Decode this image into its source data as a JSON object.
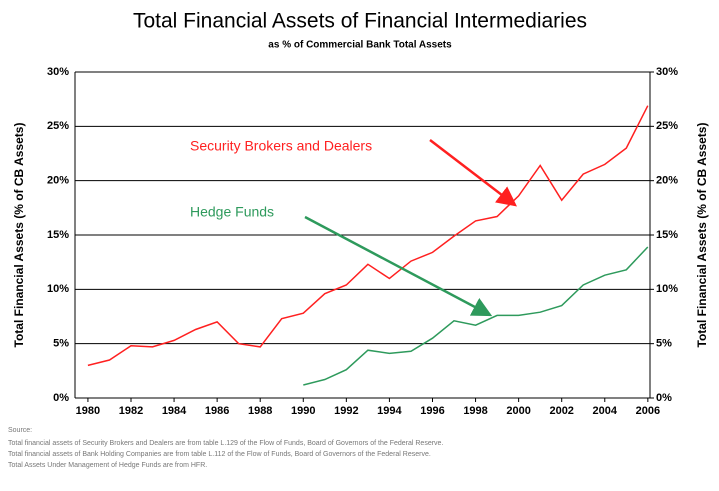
{
  "chart_data": {
    "type": "line",
    "title": "Total Financial Assets of Financial Intermediaries",
    "subtitle": "as % of Commercial Bank Total Assets",
    "y_label": "Total Financial Assets (% of CB Assets)",
    "y2_label": "Total Financial Assets (% of CB Assets)",
    "x": [
      1980,
      1981,
      1982,
      1983,
      1984,
      1985,
      1986,
      1987,
      1988,
      1989,
      1990,
      1991,
      1992,
      1993,
      1994,
      1995,
      1996,
      1997,
      1998,
      1999,
      2000,
      2001,
      2002,
      2003,
      2004,
      2005,
      2006
    ],
    "xlim": [
      1979.4,
      2006.1
    ],
    "xticks": [
      1980,
      1982,
      1984,
      1986,
      1988,
      1990,
      1992,
      1994,
      1996,
      1998,
      2000,
      2002,
      2004,
      2006
    ],
    "ylim": [
      0,
      30
    ],
    "yticks": [
      {
        "value": 0,
        "label": "0%"
      },
      {
        "value": 5,
        "label": "5%"
      },
      {
        "value": 10,
        "label": "10%"
      },
      {
        "value": 15,
        "label": "15%"
      },
      {
        "value": 20,
        "label": "20%"
      },
      {
        "value": 25,
        "label": "25%"
      },
      {
        "value": 30,
        "label": "30%"
      }
    ],
    "y2lim": [
      0,
      30
    ],
    "y2ticks": [
      {
        "value": 0,
        "label": "0%"
      },
      {
        "value": 5,
        "label": "5%"
      },
      {
        "value": 10,
        "label": "10%"
      },
      {
        "value": 15,
        "label": "15%"
      },
      {
        "value": 20,
        "label": "20%"
      },
      {
        "value": 25,
        "label": "25%"
      },
      {
        "value": 30,
        "label": "30%"
      }
    ],
    "grid": true,
    "series": [
      {
        "name": "Security Brokers and Dealers",
        "color": "#ff2020",
        "values": [
          3.0,
          3.5,
          4.8,
          4.7,
          5.3,
          6.3,
          7.0,
          5.0,
          4.7,
          7.3,
          7.8,
          9.6,
          10.4,
          12.3,
          11.0,
          12.6,
          13.4,
          14.9,
          16.3,
          16.7,
          18.6,
          21.4,
          18.2,
          20.6,
          21.5,
          23.0,
          26.9
        ]
      },
      {
        "name": "Hedge Funds",
        "color": "#2e9a5c",
        "values": [
          null,
          null,
          null,
          null,
          null,
          null,
          null,
          null,
          null,
          null,
          1.2,
          1.7,
          2.6,
          4.4,
          4.1,
          4.3,
          5.5,
          7.1,
          6.7,
          7.6,
          7.6,
          7.9,
          8.5,
          10.4,
          11.3,
          11.8,
          13.9
        ]
      }
    ],
    "notes": [
      "Source:",
      "Total financial assets of Security Brokers and Dealers are from table L.129 of the Flow of Funds, Board of Governors of the Federal Reserve.",
      "Total financial assets of Bank Holding Companies are from table L.112 of the Flow of Funds, Board of Governors of the Federal Reserve.",
      "Total Assets Under Management of Hedge Funds are from HFR."
    ]
  }
}
